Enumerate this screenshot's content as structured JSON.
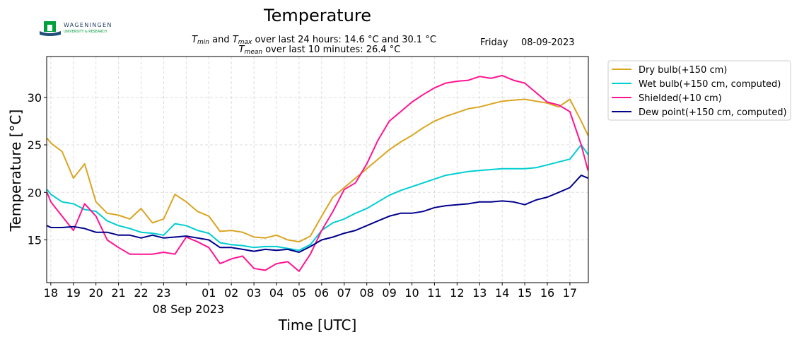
{
  "logo": {
    "name": "WAGENINGEN",
    "sub": "UNIVERSITY & RESEARCH",
    "color": "#00a03c"
  },
  "header": {
    "title": "Temperature",
    "subtitle_line1": {
      "t1": "T",
      "s1": "min",
      "mid": " and ",
      "t2": "T",
      "s2": "max",
      "rest": " over last 24 hours: 14.6 °C and 30.1 °C"
    },
    "subtitle_line2": {
      "t": "T",
      "s": "mean",
      "rest": " over last 10 minutes: 26.4 °C"
    },
    "day": "Friday",
    "date": "08-09-2023"
  },
  "chart_data": {
    "type": "line",
    "title": "Temperature",
    "xlabel": "Time [UTC]",
    "ylabel": "Temperature [°C]",
    "ylim": [
      10.5,
      34.3
    ],
    "xlim": [
      "2023-09-07T17:49",
      "2023-09-08T17:49"
    ],
    "grid": true,
    "legend": "outside-top-right",
    "yticks": [
      15,
      20,
      25,
      30
    ],
    "xticks": [
      {
        "t": "2023-09-07T18:00",
        "label": "18"
      },
      {
        "t": "2023-09-07T19:00",
        "label": "19"
      },
      {
        "t": "2023-09-07T20:00",
        "label": "20"
      },
      {
        "t": "2023-09-07T21:00",
        "label": "21"
      },
      {
        "t": "2023-09-07T22:00",
        "label": "22"
      },
      {
        "t": "2023-09-07T23:00",
        "label": "23"
      },
      {
        "t": "2023-09-08T00:00",
        "label": ""
      },
      {
        "t": "2023-09-08T01:00",
        "label": "01"
      },
      {
        "t": "2023-09-08T02:00",
        "label": "02"
      },
      {
        "t": "2023-09-08T03:00",
        "label": "03"
      },
      {
        "t": "2023-09-08T04:00",
        "label": "04"
      },
      {
        "t": "2023-09-08T05:00",
        "label": "05"
      },
      {
        "t": "2023-09-08T06:00",
        "label": "06"
      },
      {
        "t": "2023-09-08T07:00",
        "label": "07"
      },
      {
        "t": "2023-09-08T08:00",
        "label": "08"
      },
      {
        "t": "2023-09-08T09:00",
        "label": "09"
      },
      {
        "t": "2023-09-08T10:00",
        "label": "10"
      },
      {
        "t": "2023-09-08T11:00",
        "label": "11"
      },
      {
        "t": "2023-09-08T12:00",
        "label": "12"
      },
      {
        "t": "2023-09-08T13:00",
        "label": "13"
      },
      {
        "t": "2023-09-08T14:00",
        "label": "14"
      },
      {
        "t": "2023-09-08T15:00",
        "label": "15"
      },
      {
        "t": "2023-09-08T16:00",
        "label": "16"
      },
      {
        "t": "2023-09-08T17:00",
        "label": "17"
      }
    ],
    "date_label": "08 Sep 2023",
    "x": [
      "2023-09-07T17:50",
      "2023-09-07T18:00",
      "2023-09-07T18:30",
      "2023-09-07T19:00",
      "2023-09-07T19:30",
      "2023-09-07T20:00",
      "2023-09-07T20:30",
      "2023-09-07T21:00",
      "2023-09-07T21:30",
      "2023-09-07T22:00",
      "2023-09-07T22:30",
      "2023-09-07T23:00",
      "2023-09-07T23:30",
      "2023-09-08T00:00",
      "2023-09-08T00:30",
      "2023-09-08T01:00",
      "2023-09-08T01:30",
      "2023-09-08T02:00",
      "2023-09-08T02:30",
      "2023-09-08T03:00",
      "2023-09-08T03:30",
      "2023-09-08T04:00",
      "2023-09-08T04:30",
      "2023-09-08T05:00",
      "2023-09-08T05:30",
      "2023-09-08T06:00",
      "2023-09-08T06:30",
      "2023-09-08T07:00",
      "2023-09-08T07:30",
      "2023-09-08T08:00",
      "2023-09-08T08:30",
      "2023-09-08T09:00",
      "2023-09-08T09:30",
      "2023-09-08T10:00",
      "2023-09-08T10:30",
      "2023-09-08T11:00",
      "2023-09-08T11:30",
      "2023-09-08T12:00",
      "2023-09-08T12:30",
      "2023-09-08T13:00",
      "2023-09-08T13:30",
      "2023-09-08T14:00",
      "2023-09-08T14:30",
      "2023-09-08T15:00",
      "2023-09-08T15:30",
      "2023-09-08T16:00",
      "2023-09-08T16:30",
      "2023-09-08T17:00",
      "2023-09-08T17:30",
      "2023-09-08T17:48"
    ],
    "series": [
      {
        "name": "Dry bulb(+150 cm)",
        "color": "#DAA520",
        "values": [
          25.7,
          25.2,
          24.3,
          21.5,
          23.0,
          19.0,
          17.8,
          17.6,
          17.2,
          18.3,
          16.8,
          17.2,
          19.8,
          19.0,
          18.0,
          17.5,
          15.9,
          16.0,
          15.8,
          15.3,
          15.2,
          15.5,
          15.0,
          14.8,
          15.4,
          17.5,
          19.5,
          20.5,
          21.5,
          22.5,
          23.5,
          24.5,
          25.3,
          26.0,
          26.8,
          27.5,
          28.0,
          28.4,
          28.8,
          29.0,
          29.3,
          29.6,
          29.7,
          29.8,
          29.6,
          29.4,
          29.0,
          29.8,
          27.5,
          26.0
        ]
      },
      {
        "name": "Wet bulb(+150 cm, computed)",
        "color": "#00CED1",
        "values": [
          20.3,
          19.8,
          19.0,
          18.8,
          18.2,
          18.0,
          17.0,
          16.5,
          16.2,
          15.8,
          15.7,
          15.5,
          16.7,
          16.5,
          16.0,
          15.7,
          14.7,
          14.5,
          14.4,
          14.2,
          14.3,
          14.3,
          14.1,
          13.9,
          14.5,
          16.0,
          16.8,
          17.2,
          17.8,
          18.3,
          19.0,
          19.7,
          20.2,
          20.6,
          21.0,
          21.4,
          21.8,
          22.0,
          22.2,
          22.3,
          22.4,
          22.5,
          22.5,
          22.5,
          22.6,
          22.9,
          23.2,
          23.5,
          25.0,
          24.0
        ]
      },
      {
        "name": "Shielded(+10 cm)",
        "color": "#FF1493",
        "values": [
          20.0,
          19.0,
          17.5,
          16.0,
          18.8,
          17.5,
          15.0,
          14.2,
          13.5,
          13.5,
          13.5,
          13.7,
          13.5,
          15.3,
          14.8,
          14.2,
          12.5,
          13.0,
          13.3,
          12.0,
          11.8,
          12.5,
          12.7,
          11.7,
          13.5,
          16.0,
          18.0,
          20.3,
          21.0,
          23.0,
          25.5,
          27.5,
          28.5,
          29.5,
          30.3,
          31.0,
          31.5,
          31.7,
          31.8,
          32.2,
          32.0,
          32.3,
          31.8,
          31.5,
          30.5,
          29.5,
          29.2,
          28.5,
          25.0,
          22.3
        ]
      },
      {
        "name": "Dew point(+150 cm, computed)",
        "color": "#00008B",
        "values": [
          16.5,
          16.3,
          16.3,
          16.4,
          16.2,
          15.8,
          15.8,
          15.5,
          15.5,
          15.2,
          15.5,
          15.2,
          15.3,
          15.4,
          15.2,
          15.0,
          14.2,
          14.2,
          14.0,
          13.8,
          14.0,
          13.9,
          14.0,
          13.7,
          14.3,
          15.0,
          15.3,
          15.7,
          16.0,
          16.5,
          17.0,
          17.5,
          17.8,
          17.8,
          18.0,
          18.4,
          18.6,
          18.7,
          18.8,
          19.0,
          19.0,
          19.1,
          19.0,
          18.7,
          19.2,
          19.5,
          20.0,
          20.5,
          21.8,
          21.5
        ]
      }
    ]
  }
}
